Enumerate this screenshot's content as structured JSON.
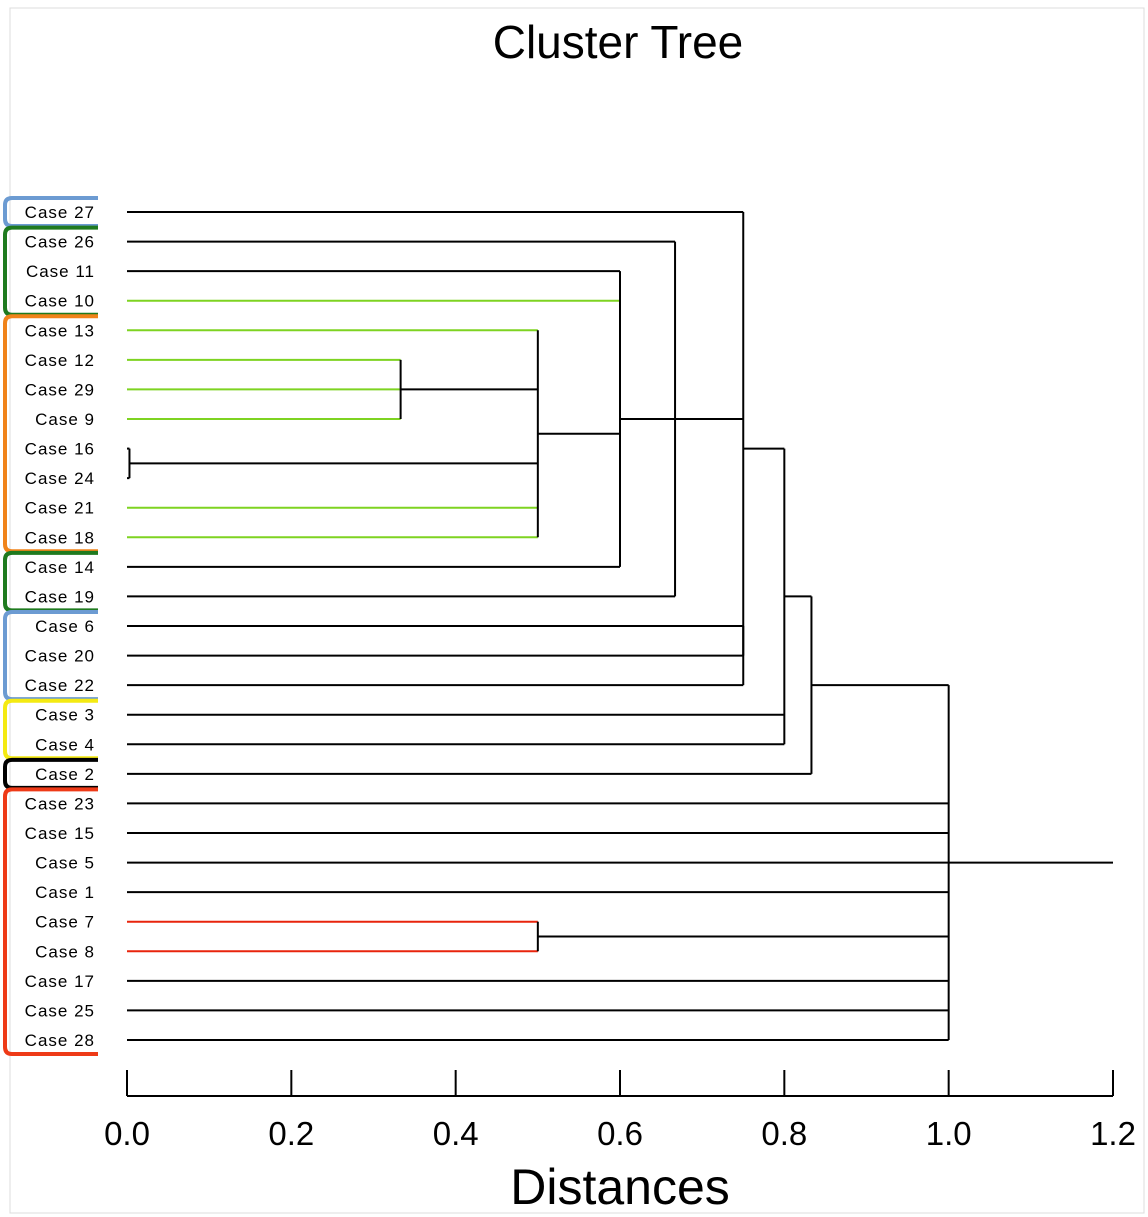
{
  "chart_data": {
    "type": "dendrogram",
    "title": "Cluster Tree",
    "xlabel": "Distances",
    "xlim": [
      0,
      1.2
    ],
    "xticks": [
      0.0,
      0.2,
      0.4,
      0.6,
      0.8,
      1.0,
      1.2
    ],
    "xtick_labels": [
      "0.0",
      "0.2",
      "0.4",
      "0.6",
      "0.8",
      "1.0",
      "1.2"
    ],
    "leaves": [
      "Case 27",
      "Case 26",
      "Case 11",
      "Case 10",
      "Case 13",
      "Case 12",
      "Case 29",
      "Case 9",
      "Case 16",
      "Case 24",
      "Case 21",
      "Case 18",
      "Case 14",
      "Case 19",
      "Case 6",
      "Case 20",
      "Case 22",
      "Case 3",
      "Case 4",
      "Case 2",
      "Case 23",
      "Case 15",
      "Case 5",
      "Case 1",
      "Case 7",
      "Case 8",
      "Case 17",
      "Case 25",
      "Case 28"
    ],
    "merges": [
      {
        "id": "A",
        "height": 0.003,
        "children": [
          "Case 16",
          "Case 24"
        ]
      },
      {
        "id": "B",
        "height": 0.333,
        "children": [
          "Case 12",
          "Case 29",
          "Case 9"
        ]
      },
      {
        "id": "C",
        "height": 0.5,
        "children": [
          "Case 13",
          "B",
          "A",
          "Case 21",
          "Case 18"
        ]
      },
      {
        "id": "D",
        "height": 0.6,
        "children": [
          "Case 11",
          "Case 10",
          "C",
          "Case 14"
        ]
      },
      {
        "id": "E",
        "height": 0.667,
        "children": [
          "Case 26",
          "D",
          "Case 19"
        ]
      },
      {
        "id": "F",
        "height": 0.75,
        "children": [
          "Case 6",
          "Case 20"
        ]
      },
      {
        "id": "G",
        "height": 0.75,
        "children": [
          "Case 27",
          "E",
          "F",
          "Case 22"
        ]
      },
      {
        "id": "H",
        "height": 0.8,
        "children": [
          "G",
          "Case 3",
          "Case 4"
        ]
      },
      {
        "id": "I",
        "height": 0.833,
        "children": [
          "H",
          "Case 2"
        ]
      },
      {
        "id": "J",
        "height": 0.5,
        "children": [
          "Case 7",
          "Case 8"
        ]
      },
      {
        "id": "K",
        "height": 1.0,
        "children": [
          "I",
          "Case 23",
          "Case 15",
          "Case 5",
          "Case 1",
          "J",
          "Case 17",
          "Case 25",
          "Case 28"
        ]
      }
    ],
    "root_height": 1.2,
    "colored_leaf_links": {
      "#7ed321": [
        "Case 10",
        "Case 13",
        "Case 12",
        "Case 29",
        "Case 9",
        "Case 21",
        "Case 18"
      ],
      "#e8240c": [
        "Case 7",
        "Case 8"
      ]
    },
    "groups": [
      {
        "color": "#6c9bd2",
        "leaves": [
          "Case 27"
        ]
      },
      {
        "color": "#1f7a1f",
        "leaves": [
          "Case 26",
          "Case 11",
          "Case 10"
        ]
      },
      {
        "color": "#f0831a",
        "leaves": [
          "Case 13",
          "Case 12",
          "Case 29",
          "Case 9",
          "Case 16",
          "Case 24",
          "Case 21",
          "Case 18"
        ]
      },
      {
        "color": "#1f7a1f",
        "leaves": [
          "Case 14",
          "Case 19"
        ]
      },
      {
        "color": "#6c9bd2",
        "leaves": [
          "Case 6",
          "Case 20",
          "Case 22"
        ]
      },
      {
        "color": "#f4ea12",
        "leaves": [
          "Case 3",
          "Case 4"
        ]
      },
      {
        "color": "#000000",
        "leaves": [
          "Case 2"
        ]
      },
      {
        "color": "#ee3a17",
        "leaves": [
          "Case 23",
          "Case 15",
          "Case 5",
          "Case 1",
          "Case 7",
          "Case 8",
          "Case 17",
          "Case 25",
          "Case 28"
        ]
      }
    ],
    "grid": false
  }
}
